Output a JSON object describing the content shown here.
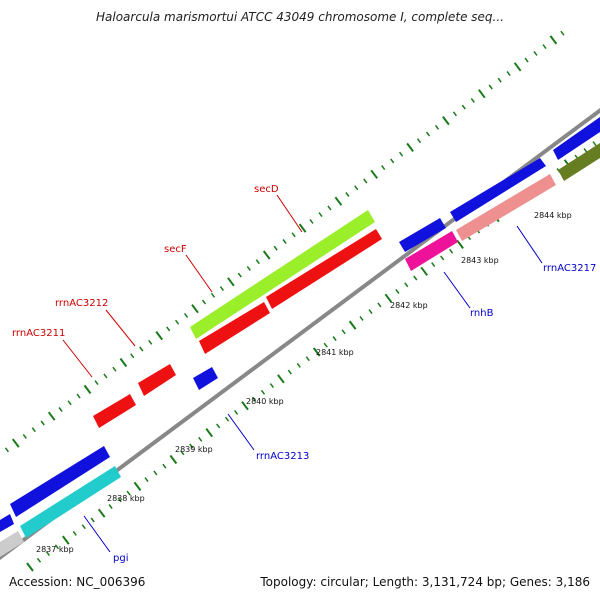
{
  "title": "Haloarcula marismortui ATCC 43049 chromosome I, complete seq...",
  "accession_text": "Accession: NC_006396",
  "summary_text": "Topology: circular; Length: 3,131,724 bp; Genes: 3,186",
  "colors": {
    "backbone": "#888888",
    "tick": "#1a7a1a",
    "label_forward": "#cc0000",
    "label_reverse": "#0000cc"
  },
  "scale_labels": [
    "2837 kbp",
    "2838 kbp",
    "2839 kbp",
    "2840 kbp",
    "2841 kbp",
    "2842 kbp",
    "2843 kbp",
    "2844 kbp"
  ],
  "gene_labels": [
    {
      "text": "secD",
      "strand": "forward"
    },
    {
      "text": "secF",
      "strand": "forward"
    },
    {
      "text": "rrnAC3212",
      "strand": "forward"
    },
    {
      "text": "rrnAC3211",
      "strand": "forward"
    },
    {
      "text": "rrnAC3213",
      "strand": "reverse"
    },
    {
      "text": "rnhB",
      "strand": "reverse"
    },
    {
      "text": "rrnAC3217",
      "strand": "reverse"
    },
    {
      "text": "pgi",
      "strand": "reverse"
    }
  ],
  "feature_colors": [
    "#9aee2a",
    "#ee1111",
    "#1111dd",
    "#ee1199",
    "#ee9090",
    "#22cccc",
    "#667d22",
    "#cccccc"
  ]
}
